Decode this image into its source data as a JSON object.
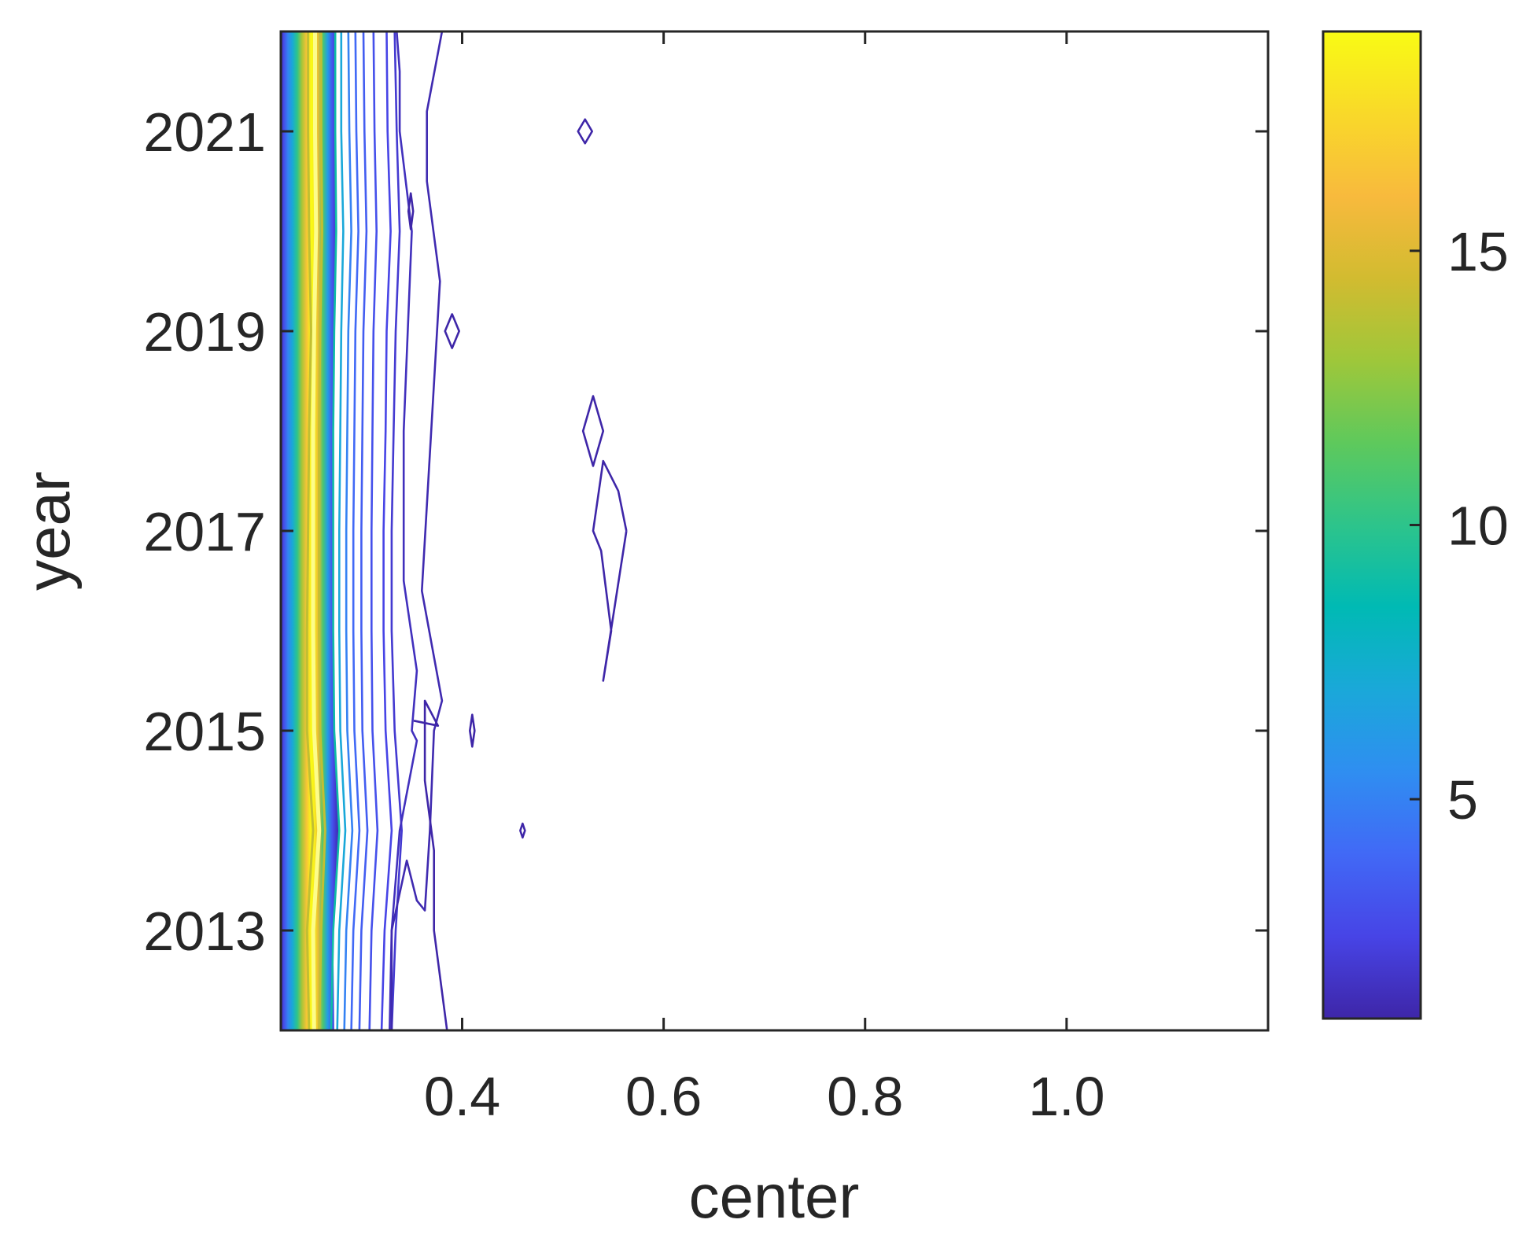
{
  "chart_data": {
    "type": "contour",
    "title": "",
    "xlabel": "center",
    "ylabel": "year",
    "xlim": [
      0.22,
      1.2
    ],
    "ylim": [
      2012,
      2022
    ],
    "x_ticks": [
      {
        "value": 0.4,
        "label": "0.4"
      },
      {
        "value": 0.6,
        "label": "0.6"
      },
      {
        "value": 0.8,
        "label": "0.8"
      },
      {
        "value": 1.0,
        "label": "1.0"
      }
    ],
    "y_ticks": [
      {
        "value": 2013,
        "label": "2013"
      },
      {
        "value": 2015,
        "label": "2015"
      },
      {
        "value": 2017,
        "label": "2017"
      },
      {
        "value": 2019,
        "label": "2019"
      },
      {
        "value": 2021,
        "label": "2021"
      }
    ],
    "colorbar": {
      "colormap": "parula",
      "range": [
        1,
        19
      ],
      "ticks": [
        {
          "value": 5,
          "label": "5"
        },
        {
          "value": 10,
          "label": "10"
        },
        {
          "value": 15,
          "label": "15"
        }
      ],
      "stops": [
        "#3e26a8",
        "#4744e6",
        "#4169f6",
        "#2f8ef1",
        "#1aa8d9",
        "#00bab4",
        "#2dc48b",
        "#5ec95c",
        "#9fc73a",
        "#d2bb30",
        "#f8ba3d",
        "#f9d929",
        "#f9fb14"
      ]
    },
    "ridge": {
      "description_values": "peak centre of the high-density band per year",
      "years": [
        2012,
        2013,
        2014,
        2015,
        2016,
        2017,
        2018,
        2019,
        2020,
        2021,
        2022
      ],
      "center": [
        0.253,
        0.252,
        0.258,
        0.253,
        0.252,
        0.252,
        0.252,
        0.253,
        0.255,
        0.254,
        0.254
      ]
    },
    "contours": [
      {
        "level": 14,
        "x": [
          0.248,
          0.246,
          0.252,
          0.246,
          0.246,
          0.247,
          0.248,
          0.25,
          0.248,
          0.247,
          0.247
        ],
        "y": [
          2012,
          2013,
          2014,
          2015,
          2016,
          2017,
          2018,
          2019,
          2020,
          2021,
          2022
        ]
      },
      {
        "level": 14,
        "x": [
          0.258,
          0.26,
          0.264,
          0.259,
          0.258,
          0.258,
          0.258,
          0.259,
          0.261,
          0.26,
          0.26
        ],
        "y": [
          2012,
          2013,
          2014,
          2015,
          2016,
          2017,
          2018,
          2019,
          2020,
          2021,
          2022
        ]
      },
      {
        "level": 9,
        "x": [
          0.27,
          0.272,
          0.278,
          0.273,
          0.272,
          0.272,
          0.272,
          0.273,
          0.275,
          0.274,
          0.274
        ],
        "y": [
          2012,
          2013,
          2014,
          2015,
          2016,
          2017,
          2018,
          2019,
          2020,
          2021,
          2022
        ]
      },
      {
        "level": 7,
        "x": [
          0.276,
          0.278,
          0.284,
          0.279,
          0.278,
          0.278,
          0.279,
          0.28,
          0.282,
          0.28,
          0.28
        ],
        "y": [
          2012,
          2013,
          2014,
          2015,
          2016,
          2017,
          2018,
          2019,
          2020,
          2021,
          2022
        ]
      },
      {
        "level": 5,
        "x": [
          0.283,
          0.285,
          0.291,
          0.286,
          0.285,
          0.285,
          0.286,
          0.287,
          0.29,
          0.288,
          0.287
        ],
        "y": [
          2012,
          2013,
          2014,
          2015,
          2016,
          2017,
          2018,
          2019,
          2020,
          2021,
          2022
        ]
      },
      {
        "level": 4,
        "x": [
          0.29,
          0.292,
          0.298,
          0.293,
          0.292,
          0.292,
          0.293,
          0.294,
          0.297,
          0.295,
          0.294
        ],
        "y": [
          2012,
          2013,
          2014,
          2015,
          2016,
          2017,
          2018,
          2019,
          2020,
          2021,
          2022
        ]
      },
      {
        "level": 3.5,
        "x": [
          0.298,
          0.3,
          0.306,
          0.301,
          0.3,
          0.3,
          0.301,
          0.302,
          0.305,
          0.303,
          0.302
        ],
        "y": [
          2012,
          2013,
          2014,
          2015,
          2016,
          2017,
          2018,
          2019,
          2020,
          2021,
          2022
        ]
      },
      {
        "level": 3,
        "x": [
          0.308,
          0.31,
          0.316,
          0.311,
          0.31,
          0.31,
          0.311,
          0.312,
          0.315,
          0.313,
          0.312
        ],
        "y": [
          2012,
          2013,
          2014,
          2015,
          2016,
          2017,
          2018,
          2019,
          2020,
          2021,
          2022
        ]
      },
      {
        "level": 2.5,
        "x": [
          0.32,
          0.323,
          0.33,
          0.324,
          0.322,
          0.322,
          0.324,
          0.325,
          0.329,
          0.326,
          0.325
        ],
        "y": [
          2012,
          2013,
          2014,
          2015,
          2016,
          2017,
          2018,
          2019,
          2020,
          2021,
          2022
        ]
      },
      {
        "level": 2,
        "x": [
          0.33,
          0.334,
          0.34,
          0.333,
          0.33,
          0.33,
          0.332,
          0.334,
          0.338,
          0.335,
          0.333
        ],
        "y": [
          2012,
          2013,
          2014,
          2015,
          2016,
          2017,
          2018,
          2019,
          2020,
          2021,
          2022
        ]
      },
      {
        "level": 1.5,
        "x": [
          0.328,
          0.33,
          0.338,
          0.355,
          0.35,
          0.355,
          0.342,
          0.342,
          0.35,
          0.338,
          0.338,
          0.335
        ],
        "y": [
          2012,
          2013,
          2014,
          2014.9,
          2015,
          2015.6,
          2016.5,
          2018,
          2020,
          2021,
          2021.6,
          2022
        ]
      },
      {
        "level": 1.2,
        "x": [
          0.33,
          0.33,
          0.345,
          0.355,
          0.363,
          0.368,
          0.372,
          0.38,
          0.36,
          0.378,
          0.365,
          0.365,
          0.38
        ],
        "y": [
          2012,
          2013,
          2013.7,
          2013.3,
          2013.2,
          2014,
          2015,
          2015.3,
          2016.4,
          2019.5,
          2020.5,
          2021.2,
          2022
        ]
      },
      {
        "level": 1.0,
        "x": [
          0.385,
          0.372,
          0.372,
          0.363,
          0.363,
          0.376,
          0.352
        ],
        "y": [
          2012,
          2013,
          2013.8,
          2014.5,
          2015.3,
          2015.05,
          2015.1
        ]
      },
      {
        "level": 1.0,
        "x": [
          0.563,
          0.54,
          0.548,
          0.538,
          0.53,
          0.53,
          0.54,
          0.555,
          0.563
        ],
        "y": [
          2017,
          2015.5,
          2016,
          2016.8,
          2017,
          2017,
          2017.7,
          2017.4,
          2017
        ]
      }
    ],
    "islands": [
      {
        "cx": 0.349,
        "cy": 2020.2,
        "rx": 0.002,
        "ry": 0.18
      },
      {
        "cx": 0.39,
        "cy": 2019.0,
        "rx": 0.007,
        "ry": 0.17
      },
      {
        "cx": 0.53,
        "cy": 2018.0,
        "rx": 0.01,
        "ry": 0.35
      },
      {
        "cx": 0.522,
        "cy": 2021.0,
        "rx": 0.007,
        "ry": 0.12
      },
      {
        "cx": 0.41,
        "cy": 2015.0,
        "rx": 0.002,
        "ry": 0.16
      },
      {
        "cx": 0.46,
        "cy": 2014.0,
        "rx": 0.001,
        "ry": 0.07
      }
    ]
  }
}
